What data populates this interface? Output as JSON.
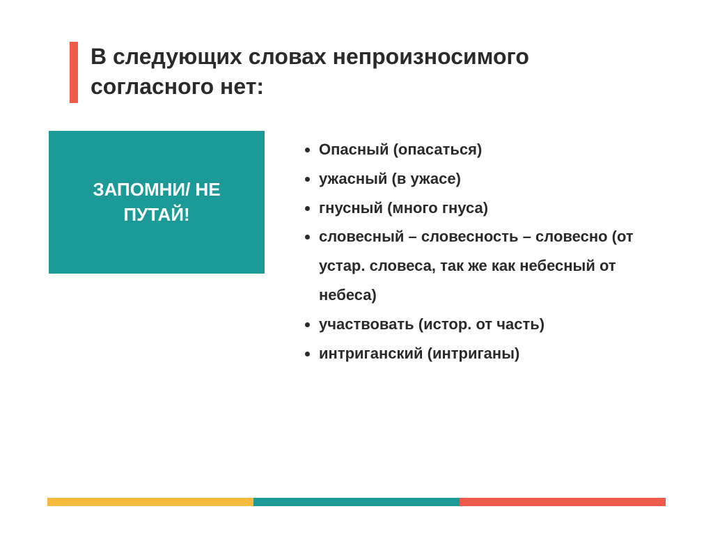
{
  "colors": {
    "accent_bar": "#f05a4b",
    "callout_bg": "#1c9a98",
    "text_dark": "#2a2a2a",
    "white": "#ffffff",
    "stripe_yellow": "#f4b93f",
    "stripe_teal": "#1c9a98",
    "stripe_orange": "#f05a4b"
  },
  "title": "В следующих словах непроизносимого согласного нет:",
  "callout": "ЗАПОМНИ/ НЕ ПУТАЙ!",
  "items": [
    "Опасный (опасаться)",
    "ужасный (в ужасе)",
    "гнусный (много гнуса)",
    "словесный – словесность – словесно (от устар. словеса, так же как небесный от небеса)",
    "участвовать (истор. от часть)",
    "интриганский (интриганы)"
  ],
  "typography": {
    "title_fontsize": 32,
    "callout_fontsize": 26,
    "item_fontsize": 22
  }
}
